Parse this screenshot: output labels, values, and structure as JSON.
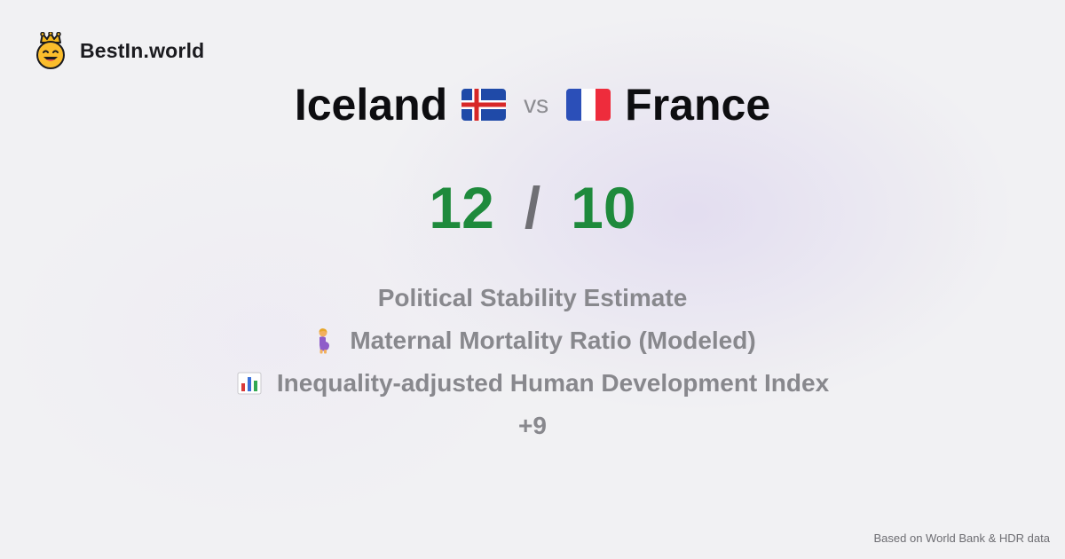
{
  "brand": {
    "name": "BestIn.world",
    "logo_icon": "crowned-smiley-icon"
  },
  "comparison": {
    "left": {
      "country": "Iceland",
      "flag_icon": "iceland-flag-icon",
      "score": "12"
    },
    "vs_label": "vs",
    "right": {
      "country": "France",
      "flag_icon": "france-flag-icon",
      "score": "10"
    },
    "separator": "/"
  },
  "metrics": [
    {
      "label": "Political Stability Estimate",
      "icon": ""
    },
    {
      "label": "Maternal Mortality Ratio (Modeled)",
      "icon": "pregnant-woman-icon"
    },
    {
      "label": "Inequality-adjusted Human Development Index",
      "icon": "bar-chart-icon"
    }
  ],
  "more_label": "+9",
  "footer": {
    "source_note": "Based on World Bank & HDR data"
  },
  "colors": {
    "score_green": "#1e8a3c",
    "muted_text": "#88888d",
    "background": "#f1f1f3"
  }
}
